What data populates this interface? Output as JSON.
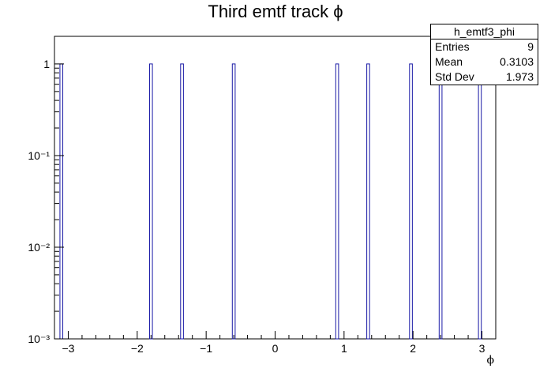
{
  "chart_data": {
    "type": "bar",
    "title": "Third emtf track ϕ",
    "xlabel": "ϕ",
    "ylabel": "",
    "xlim": [
      -3.2,
      3.2
    ],
    "ylim": [
      0.001,
      2
    ],
    "log_y": true,
    "grid": false,
    "x_ticks": [
      "−3",
      "−2",
      "−1",
      "0",
      "1",
      "2",
      "3"
    ],
    "y_ticks": [
      "10⁻³",
      "10⁻²",
      "10⁻¹",
      "1"
    ],
    "series": [
      {
        "x": [
          -3.1,
          -1.8,
          -1.35,
          -0.6,
          0.9,
          1.35,
          1.97,
          2.4,
          2.97
        ],
        "values": [
          1,
          1,
          1,
          1,
          1,
          1,
          1,
          1,
          1
        ]
      }
    ],
    "bar_color": "#1a1aa6",
    "stats": {
      "name": "h_emtf3_phi",
      "rows": [
        {
          "label": "Entries",
          "value": "9"
        },
        {
          "label": "Mean",
          "value": "0.3103"
        },
        {
          "label": "Std Dev",
          "value": "1.973"
        }
      ]
    }
  }
}
